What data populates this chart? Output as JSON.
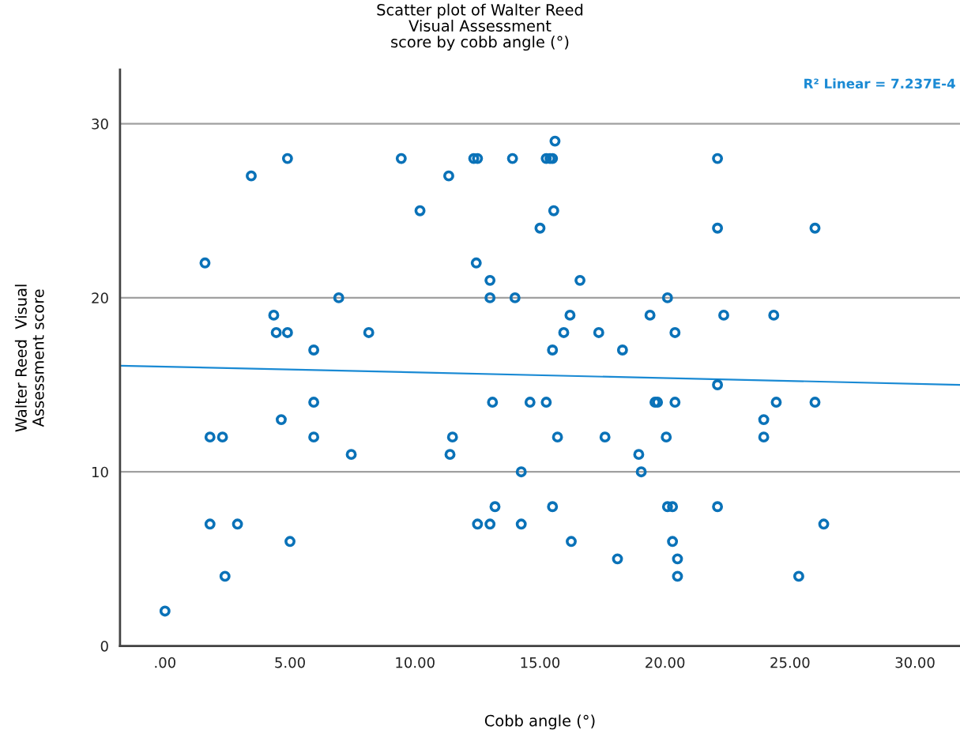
{
  "chart_data": {
    "type": "scatter",
    "title": "Scatter plot of Walter Reed\nVisual Assessment\nscore by cobb angle (°)",
    "xlabel": "Cobb angle (°)",
    "ylabel": "Walter Reed  Visual\nAssessment score",
    "annotations": [
      "R² Linear = 7.237E-4"
    ],
    "xlim": [
      -1.8,
      31.8
    ],
    "ylim": [
      0,
      33.1
    ],
    "xticks": [
      {
        "value": 0,
        "label": ".00"
      },
      {
        "value": 5,
        "label": "5.00"
      },
      {
        "value": 10,
        "label": "10.00"
      },
      {
        "value": 15,
        "label": "15.00"
      },
      {
        "value": 20,
        "label": "20.00"
      },
      {
        "value": 25,
        "label": "25.00"
      },
      {
        "value": 30,
        "label": "30.00"
      }
    ],
    "yticks": [
      0,
      10,
      20,
      30
    ],
    "grid": "y",
    "series": [
      {
        "color": "#0a72b8",
        "marker": "circle",
        "x": [
          0,
          1.6,
          1.8,
          2.3,
          1.8,
          2.9,
          2.4,
          3.45,
          4.35,
          4.45,
          4.9,
          4.9,
          4.65,
          5.0,
          5.95,
          5.95,
          5.95,
          6.95,
          7.45,
          8.15,
          9.45,
          10.2,
          11.35,
          12.35,
          12.5,
          12.45,
          11.5,
          11.4,
          13.0,
          13.0,
          13.1,
          13.2,
          12.5,
          13.0,
          13.9,
          14.0,
          14.25,
          14.25,
          14.6,
          15.0,
          15.25,
          15.4,
          15.5,
          15.6,
          15.55,
          15.25,
          15.5,
          15.5,
          15.7,
          15.95,
          16.2,
          16.25,
          16.6,
          17.35,
          17.6,
          18.3,
          18.1,
          18.95,
          19.05,
          19.4,
          19.6,
          19.7,
          20.1,
          20.05,
          20.1,
          20.3,
          20.3,
          20.4,
          20.4,
          20.5,
          20.5,
          22.1,
          22.1,
          22.1,
          22.1,
          22.35,
          23.95,
          23.95,
          24.35,
          24.45,
          25.35,
          26.0,
          26.0,
          26.35
        ],
        "values": [
          2,
          22,
          12,
          12,
          7,
          7,
          4,
          27,
          19,
          18,
          18,
          28,
          13,
          6,
          17,
          14,
          12,
          20,
          11,
          18,
          28,
          25,
          27,
          28,
          28,
          22,
          12,
          11,
          21,
          20,
          14,
          8,
          7,
          7,
          28,
          20,
          10,
          7,
          14,
          24,
          28,
          28,
          28,
          29,
          25,
          14,
          17,
          8,
          12,
          18,
          19,
          6,
          21,
          18,
          12,
          17,
          5,
          11,
          10,
          19,
          14,
          14,
          20,
          12,
          8,
          8,
          6,
          14,
          18,
          5,
          4,
          28,
          24,
          15,
          8,
          19,
          13,
          12,
          19,
          14,
          4,
          24,
          14,
          7
        ]
      },
      {
        "type": "line",
        "color": "#1a8ad4",
        "marker": "none",
        "line_style": "solid",
        "x": [
          -1.8,
          31.8
        ],
        "values": [
          16.1,
          15.0
        ]
      }
    ]
  }
}
